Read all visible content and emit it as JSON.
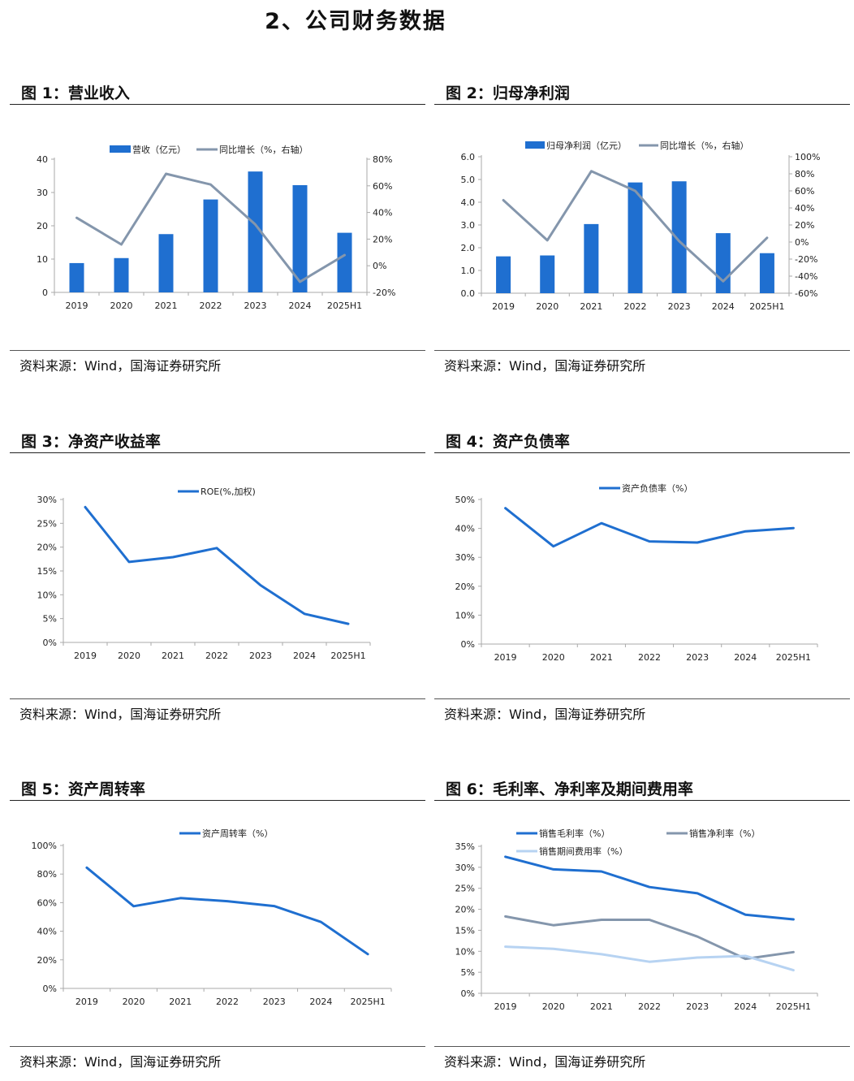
{
  "page_title": "2、公司财务数据",
  "colors": {
    "blue": "#1f6fd0",
    "gray": "#8496ac",
    "lightblue": "#b7d3f2",
    "axis": "#aaaaaa"
  },
  "source_text": "资料来源：Wind，国海证券研究所",
  "chart_data": [
    {
      "id": "fig1",
      "type": "bar+line",
      "title": "图 1：营业收入",
      "categories": [
        "2019",
        "2020",
        "2021",
        "2022",
        "2023",
        "2024",
        "2025H1"
      ],
      "series": [
        {
          "name": "营收（亿元）",
          "type": "bar",
          "axis": "left",
          "values": [
            8.8,
            10.3,
            17.5,
            27.9,
            36.3,
            32.2,
            17.9
          ]
        },
        {
          "name": "同比增长（%，右轴）",
          "type": "line",
          "axis": "right",
          "values": [
            36,
            16,
            69,
            61,
            31,
            -12,
            8
          ]
        }
      ],
      "ylim": [
        0,
        40
      ],
      "yticks": [
        0,
        10,
        20,
        30,
        40
      ],
      "ytick_labels": [
        "0",
        "10",
        "20",
        "30",
        "40"
      ],
      "y2lim": [
        -20,
        80
      ],
      "y2ticks": [
        -20,
        0,
        20,
        40,
        60,
        80
      ],
      "y2tick_labels": [
        "-20%",
        "0%",
        "20%",
        "40%",
        "60%",
        "80%"
      ],
      "legend": "top"
    },
    {
      "id": "fig2",
      "type": "bar+line",
      "title": "图 2：归母净利润",
      "categories": [
        "2019",
        "2020",
        "2021",
        "2022",
        "2023",
        "2024",
        "2025H1"
      ],
      "series": [
        {
          "name": "归母净利润（亿元）",
          "type": "bar",
          "axis": "left",
          "values": [
            1.62,
            1.66,
            3.04,
            4.87,
            4.92,
            2.64,
            1.76
          ]
        },
        {
          "name": "同比增长（%，右轴）",
          "type": "line",
          "axis": "right",
          "values": [
            49,
            2,
            83,
            60,
            1,
            -46,
            5
          ]
        }
      ],
      "ylim": [
        0,
        6
      ],
      "yticks": [
        0,
        1,
        2,
        3,
        4,
        5,
        6
      ],
      "ytick_labels": [
        "0.0",
        "1.0",
        "2.0",
        "3.0",
        "4.0",
        "5.0",
        "6.0"
      ],
      "y2lim": [
        -60,
        100
      ],
      "y2ticks": [
        -60,
        -40,
        -20,
        0,
        20,
        40,
        60,
        80,
        100
      ],
      "y2tick_labels": [
        "-60%",
        "-40%",
        "-20%",
        "0%",
        "20%",
        "40%",
        "60%",
        "80%",
        "100%"
      ],
      "legend": "top"
    },
    {
      "id": "fig3",
      "type": "line",
      "title": "图 3：净资产收益率",
      "categories": [
        "2019",
        "2020",
        "2021",
        "2022",
        "2023",
        "2024",
        "2025H1"
      ],
      "series": [
        {
          "name": "ROE(%,加权)",
          "values": [
            28.4,
            16.9,
            17.9,
            19.8,
            12.0,
            6.0,
            3.9
          ],
          "color": "blue"
        }
      ],
      "ylim": [
        0,
        30
      ],
      "yticks": [
        0,
        5,
        10,
        15,
        20,
        25,
        30
      ],
      "ytick_labels": [
        "0%",
        "5%",
        "10%",
        "15%",
        "20%",
        "25%",
        "30%"
      ],
      "legend": "top"
    },
    {
      "id": "fig4",
      "type": "line",
      "title": "图 4：资产负债率",
      "categories": [
        "2019",
        "2020",
        "2021",
        "2022",
        "2023",
        "2024",
        "2025H1"
      ],
      "series": [
        {
          "name": "资产负债率（%）",
          "values": [
            47.0,
            33.8,
            41.8,
            35.5,
            35.1,
            39.0,
            40.1
          ],
          "color": "blue"
        }
      ],
      "ylim": [
        0,
        50
      ],
      "yticks": [
        0,
        10,
        20,
        30,
        40,
        50
      ],
      "ytick_labels": [
        "0%",
        "10%",
        "20%",
        "30%",
        "40%",
        "50%"
      ],
      "legend": "top"
    },
    {
      "id": "fig5",
      "type": "line",
      "title": "图 5：资产周转率",
      "categories": [
        "2019",
        "2020",
        "2021",
        "2022",
        "2023",
        "2024",
        "2025H1"
      ],
      "series": [
        {
          "name": "资产周转率（%）",
          "values": [
            84.5,
            57.5,
            63.2,
            61.0,
            57.6,
            46.5,
            24.0
          ],
          "color": "blue"
        }
      ],
      "ylim": [
        0,
        100
      ],
      "yticks": [
        0,
        20,
        40,
        60,
        80,
        100
      ],
      "ytick_labels": [
        "0%",
        "20%",
        "40%",
        "60%",
        "80%",
        "100%"
      ],
      "legend": "top"
    },
    {
      "id": "fig6",
      "type": "line",
      "title": "图 6：毛利率、净利率及期间费用率",
      "categories": [
        "2019",
        "2020",
        "2021",
        "2022",
        "2023",
        "2024",
        "2025H1"
      ],
      "series": [
        {
          "name": "销售毛利率（%）",
          "values": [
            32.5,
            29.5,
            29.0,
            25.3,
            23.8,
            18.7,
            17.6
          ],
          "color": "blue"
        },
        {
          "name": "销售净利率（%）",
          "values": [
            18.3,
            16.2,
            17.5,
            17.5,
            13.5,
            8.2,
            9.8
          ],
          "color": "gray"
        },
        {
          "name": "销售期间费用率（%）",
          "values": [
            11.1,
            10.6,
            9.3,
            7.5,
            8.5,
            8.9,
            5.5
          ],
          "color": "lightblue"
        }
      ],
      "ylim": [
        0,
        35
      ],
      "yticks": [
        0,
        5,
        10,
        15,
        20,
        25,
        30,
        35
      ],
      "ytick_labels": [
        "0%",
        "5%",
        "10%",
        "15%",
        "20%",
        "25%",
        "30%",
        "35%"
      ],
      "legend": "top"
    }
  ]
}
